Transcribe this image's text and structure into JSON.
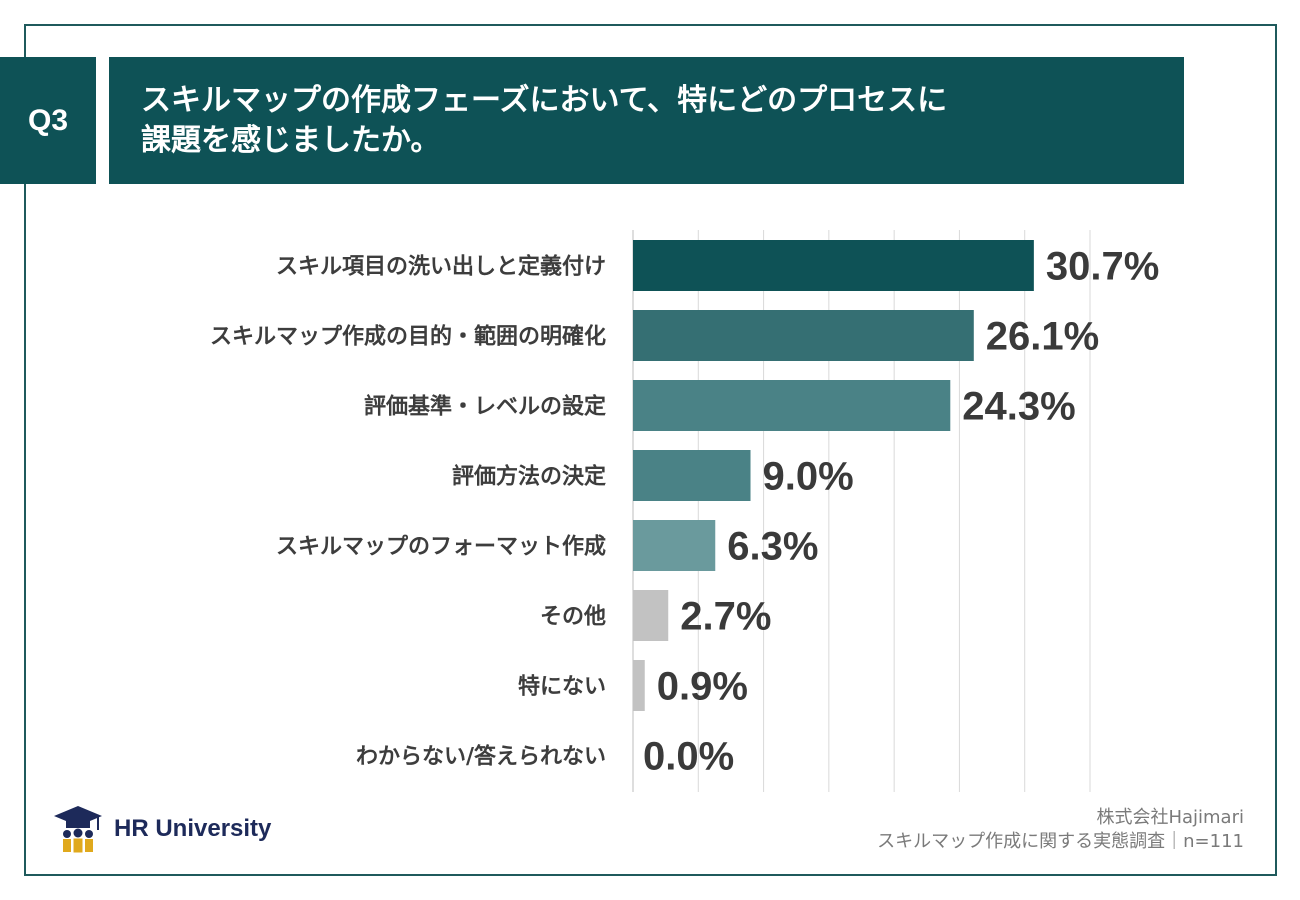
{
  "header": {
    "question_label": "Q3",
    "title_line1": "スキルマップの作成フェーズにおいて、特にどのプロセスに",
    "title_line2": "課題を感じましたか。"
  },
  "chart_data": {
    "type": "bar",
    "orientation": "horizontal",
    "title": "スキルマップの作成フェーズにおいて、特にどのプロセスに課題を感じましたか。",
    "categories": [
      "スキル項目の洗い出しと定義付け",
      "スキルマップ作成の目的・範囲の明確化",
      "評価基準・レベルの設定",
      "評価方法の決定",
      "スキルマップのフォーマット作成",
      "その他",
      "特にない",
      "わからない/答えられない"
    ],
    "values": [
      30.7,
      26.1,
      24.3,
      9.0,
      6.3,
      2.7,
      0.9,
      0.0
    ],
    "data_labels": [
      "30.7%",
      "26.1%",
      "24.3%",
      "9.0%",
      "6.3%",
      "2.7%",
      "0.9%",
      "0.0%"
    ],
    "bar_colors": [
      "#0e5256",
      "#356f73",
      "#4a8286",
      "#4a8286",
      "#6a9a9d",
      "#c2c2c2",
      "#c2c2c2",
      "#c2c2c2"
    ],
    "xlim": [
      0,
      35
    ],
    "grid": true,
    "unit": "%"
  },
  "footer": {
    "company": "株式会社Hajimari",
    "survey": "スキルマップ作成に関する実態調査｜n=111",
    "logo_text": "HR University"
  },
  "colors": {
    "header_bg": "#0e5256",
    "frame": "#1f5a5c",
    "label_text": "#3d3d3d",
    "value_text": "#3a3a3a",
    "grid": "#d9d9d9"
  }
}
